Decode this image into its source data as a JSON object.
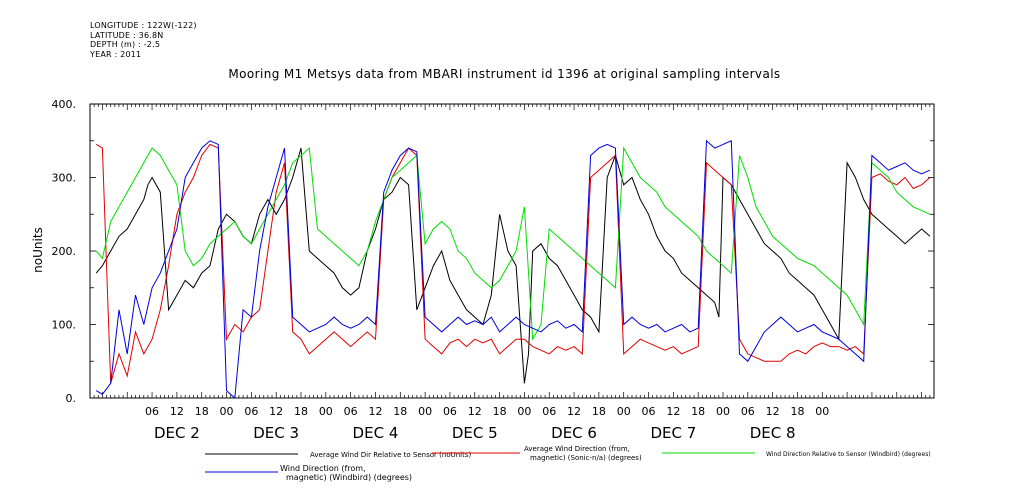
{
  "header": {
    "longitude": "LONGITUDE : 122W(-122)",
    "latitude": "LATITUDE : 36.8N",
    "depth": "DEPTH (m) : -2.5",
    "year": "YEAR : 2011"
  },
  "chart_data": {
    "type": "line",
    "title": "Mooring M1 Metsys data from MBARI instrument id 1396 at original sampling intervals",
    "ylabel": "noUnits",
    "ylim": [
      0,
      400
    ],
    "yticks": [
      "0.",
      "100.",
      "200.",
      "300.",
      "400."
    ],
    "xlim_hours": [
      -9,
      195
    ],
    "xtick_labels": [
      "06",
      "12",
      "18",
      "00",
      "06",
      "12",
      "18",
      "00",
      "06",
      "12",
      "18",
      "00",
      "06",
      "12",
      "18",
      "00",
      "06",
      "12",
      "18",
      "00",
      "06",
      "12",
      "18",
      "00",
      "06",
      "12",
      "18",
      "00"
    ],
    "day_labels": [
      "DEC  2",
      "DEC  3",
      "DEC  4",
      "DEC  5",
      "DEC  6",
      "DEC  7",
      "DEC  8"
    ],
    "grid": false,
    "legend_position": "bottom",
    "series": [
      {
        "name": "Average Wind Dir Relative to Sensor (noUnits)",
        "color": "#000000",
        "x": [
          -7.5,
          -6,
          -4,
          -2,
          0,
          2,
          4,
          5,
          6,
          8,
          10,
          12,
          14,
          16,
          18,
          20,
          22,
          24,
          26,
          28,
          30,
          32,
          34,
          36,
          38,
          40,
          42,
          44,
          46,
          48,
          50,
          52,
          54,
          56,
          58,
          60,
          62,
          64,
          66,
          68,
          70,
          72,
          74,
          76,
          78,
          80,
          82,
          84,
          86,
          88,
          90,
          92,
          94,
          96,
          97,
          98,
          100,
          102,
          104,
          106,
          108,
          110,
          112,
          114,
          116,
          118,
          120,
          122,
          124,
          126,
          128,
          130,
          132,
          134,
          136,
          138,
          140,
          142,
          143,
          144,
          146,
          148,
          150,
          152,
          154,
          156,
          158,
          160,
          162,
          164,
          166,
          168,
          170,
          172,
          174,
          176,
          178,
          180,
          182,
          184,
          186,
          188,
          190,
          192,
          194
        ],
        "y": [
          170,
          180,
          200,
          220,
          230,
          250,
          270,
          290,
          300,
          280,
          120,
          140,
          160,
          150,
          170,
          180,
          230,
          250,
          240,
          220,
          210,
          250,
          270,
          250,
          270,
          300,
          340,
          200,
          190,
          180,
          170,
          150,
          140,
          150,
          200,
          230,
          270,
          280,
          300,
          290,
          120,
          150,
          180,
          200,
          160,
          140,
          120,
          110,
          100,
          140,
          250,
          200,
          180,
          20,
          60,
          200,
          210,
          190,
          180,
          160,
          140,
          120,
          110,
          90,
          300,
          330,
          290,
          300,
          270,
          250,
          220,
          200,
          190,
          170,
          160,
          150,
          140,
          130,
          110,
          300,
          290,
          270,
          250,
          230,
          210,
          200,
          190,
          170,
          160,
          150,
          140,
          120,
          100,
          80,
          320,
          300,
          270,
          250,
          240,
          230,
          220,
          210,
          220,
          230,
          220
        ]
      },
      {
        "name": "Average Wind Direction (from, magnetic) (Sonic-n/a) (degrees)",
        "color": "#e00000",
        "x": [
          -7.5,
          -6,
          -4,
          -2,
          0,
          2,
          4,
          6,
          8,
          10,
          12,
          14,
          16,
          18,
          20,
          22,
          24,
          26,
          28,
          30,
          32,
          34,
          36,
          38,
          40,
          42,
          44,
          46,
          48,
          50,
          52,
          54,
          56,
          58,
          60,
          62,
          64,
          66,
          68,
          70,
          72,
          74,
          76,
          78,
          80,
          82,
          84,
          86,
          88,
          90,
          92,
          94,
          96,
          98,
          100,
          102,
          104,
          106,
          108,
          110,
          112,
          114,
          116,
          118,
          120,
          122,
          124,
          126,
          128,
          130,
          132,
          134,
          136,
          138,
          140,
          142,
          144,
          146,
          148,
          150,
          152,
          154,
          156,
          158,
          160,
          162,
          164,
          166,
          168,
          170,
          172,
          174,
          176,
          178,
          180,
          182,
          184,
          186,
          188,
          190,
          192,
          194
        ],
        "y": [
          345,
          340,
          20,
          60,
          30,
          90,
          60,
          80,
          120,
          180,
          250,
          280,
          300,
          330,
          345,
          340,
          80,
          100,
          90,
          110,
          120,
          200,
          280,
          320,
          90,
          80,
          60,
          70,
          80,
          90,
          80,
          70,
          80,
          90,
          80,
          270,
          300,
          320,
          340,
          330,
          80,
          70,
          60,
          75,
          80,
          70,
          80,
          75,
          80,
          60,
          70,
          80,
          80,
          70,
          65,
          60,
          70,
          65,
          70,
          60,
          300,
          310,
          320,
          330,
          60,
          70,
          80,
          75,
          70,
          65,
          70,
          60,
          65,
          70,
          320,
          310,
          300,
          290,
          80,
          60,
          55,
          50,
          50,
          50,
          60,
          65,
          60,
          70,
          75,
          70,
          70,
          65,
          70,
          60,
          300,
          305,
          295,
          290,
          300,
          285,
          290,
          300
        ]
      },
      {
        "name": "Wind Direction Relative to Sensor (Windbird) (degrees)",
        "color": "#00dd00",
        "x": [
          -7.5,
          -6,
          -4,
          -2,
          0,
          2,
          4,
          6,
          8,
          10,
          12,
          14,
          16,
          18,
          20,
          22,
          24,
          26,
          28,
          30,
          32,
          34,
          36,
          38,
          40,
          42,
          44,
          46,
          48,
          50,
          52,
          54,
          56,
          58,
          60,
          62,
          64,
          66,
          68,
          70,
          72,
          74,
          76,
          78,
          80,
          82,
          84,
          86,
          88,
          90,
          92,
          94,
          96,
          98,
          100,
          102,
          104,
          106,
          108,
          110,
          112,
          114,
          116,
          118,
          120,
          122,
          124,
          126,
          128,
          130,
          132,
          134,
          136,
          138,
          140,
          142,
          144,
          146,
          148,
          150,
          152,
          154,
          156,
          158,
          160,
          162,
          164,
          166,
          168,
          170,
          172,
          174,
          176,
          178,
          180,
          182,
          184,
          186,
          188,
          190,
          192,
          194
        ],
        "y": [
          200,
          190,
          240,
          260,
          280,
          300,
          320,
          340,
          330,
          310,
          290,
          200,
          180,
          190,
          210,
          220,
          230,
          240,
          220,
          210,
          230,
          250,
          270,
          290,
          320,
          330,
          340,
          230,
          220,
          210,
          200,
          190,
          180,
          200,
          240,
          270,
          300,
          310,
          320,
          330,
          210,
          230,
          240,
          230,
          200,
          190,
          170,
          160,
          150,
          160,
          180,
          200,
          260,
          80,
          100,
          230,
          220,
          210,
          200,
          190,
          180,
          170,
          160,
          150,
          340,
          320,
          300,
          290,
          280,
          260,
          250,
          240,
          230,
          220,
          200,
          190,
          180,
          170,
          330,
          300,
          260,
          240,
          220,
          210,
          200,
          190,
          185,
          180,
          170,
          160,
          150,
          140,
          120,
          100,
          320,
          310,
          300,
          280,
          270,
          260,
          255,
          250
        ]
      },
      {
        "name": "Wind Direction (from, magnetic) (Windbird) (degrees)",
        "color": "#0000dd",
        "x": [
          -7.5,
          -6,
          -4,
          -2,
          0,
          2,
          4,
          6,
          8,
          10,
          12,
          14,
          16,
          18,
          20,
          22,
          24,
          26,
          28,
          30,
          32,
          34,
          36,
          38,
          40,
          42,
          44,
          46,
          48,
          50,
          52,
          54,
          56,
          58,
          60,
          62,
          64,
          66,
          68,
          70,
          72,
          74,
          76,
          78,
          80,
          82,
          84,
          86,
          88,
          90,
          92,
          94,
          96,
          98,
          100,
          102,
          104,
          106,
          108,
          110,
          112,
          114,
          116,
          118,
          120,
          122,
          124,
          126,
          128,
          130,
          132,
          134,
          136,
          138,
          140,
          142,
          144,
          146,
          148,
          150,
          152,
          154,
          156,
          158,
          160,
          162,
          164,
          166,
          168,
          170,
          172,
          174,
          176,
          178,
          180,
          182,
          184,
          186,
          188,
          190,
          192,
          194
        ],
        "y": [
          10,
          5,
          20,
          120,
          60,
          140,
          100,
          150,
          170,
          200,
          230,
          300,
          320,
          340,
          350,
          345,
          10,
          0,
          120,
          110,
          200,
          260,
          300,
          340,
          110,
          100,
          90,
          95,
          100,
          110,
          100,
          95,
          100,
          110,
          100,
          280,
          310,
          330,
          340,
          335,
          110,
          100,
          90,
          100,
          110,
          100,
          105,
          100,
          110,
          90,
          100,
          110,
          100,
          95,
          90,
          100,
          105,
          95,
          100,
          90,
          330,
          340,
          345,
          340,
          100,
          110,
          100,
          95,
          100,
          90,
          95,
          100,
          90,
          95,
          350,
          340,
          345,
          350,
          60,
          50,
          70,
          90,
          100,
          110,
          100,
          90,
          95,
          100,
          90,
          85,
          80,
          70,
          60,
          50,
          330,
          320,
          310,
          315,
          320,
          310,
          305,
          310
        ]
      }
    ]
  }
}
